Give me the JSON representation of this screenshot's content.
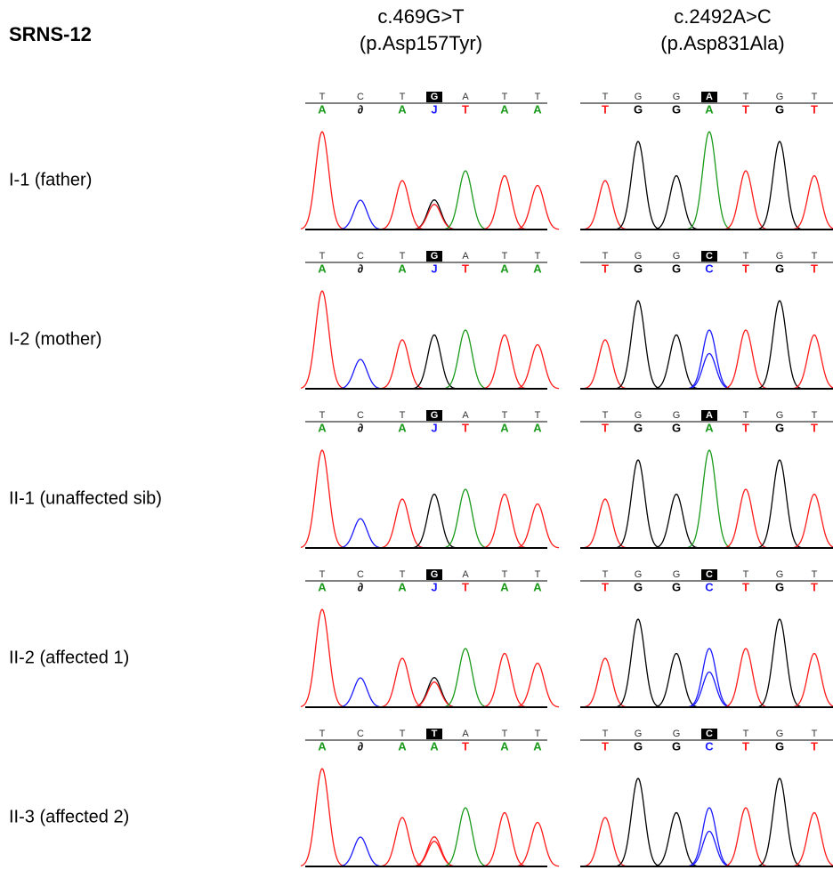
{
  "title": "SRNS-12",
  "highlight": 3,
  "columns": [
    {
      "label": "c.469G>T",
      "sublabel": "(p.Asp157Tyr)"
    },
    {
      "label": "c.2492A>C",
      "sublabel": "(p.Asp831Ala)"
    }
  ],
  "rows": [
    {
      "label": "I-1 (father)",
      "traces": [
        {
          "reference": [
            "T",
            "C",
            "T",
            "G",
            "A",
            "T",
            "T"
          ],
          "calls": [
            "A",
            "∂",
            "A",
            "J",
            "T",
            "A",
            "A"
          ]
        },
        {
          "reference": [
            "T",
            "G",
            "G",
            "A",
            "T",
            "G",
            "T"
          ],
          "calls": [
            "T",
            "G",
            "G",
            "A",
            "T",
            "G",
            "T"
          ]
        }
      ]
    },
    {
      "label": "I-2 (mother)",
      "traces": [
        {
          "reference": [
            "T",
            "C",
            "T",
            "G",
            "A",
            "T",
            "T"
          ],
          "calls": [
            "A",
            "∂",
            "A",
            "J",
            "T",
            "A",
            "A"
          ]
        },
        {
          "reference": [
            "T",
            "G",
            "G",
            "C",
            "T",
            "G",
            "T"
          ],
          "calls": [
            "T",
            "G",
            "G",
            "C",
            "T",
            "G",
            "T"
          ]
        }
      ]
    },
    {
      "label": "II-1 (unaffected sib)",
      "traces": [
        {
          "reference": [
            "T",
            "C",
            "T",
            "G",
            "A",
            "T",
            "T"
          ],
          "calls": [
            "A",
            "∂",
            "A",
            "J",
            "T",
            "A",
            "A"
          ]
        },
        {
          "reference": [
            "T",
            "G",
            "G",
            "A",
            "T",
            "G",
            "T"
          ],
          "calls": [
            "T",
            "G",
            "G",
            "A",
            "T",
            "G",
            "T"
          ]
        }
      ]
    },
    {
      "label": "II-2 (affected 1)",
      "traces": [
        {
          "reference": [
            "T",
            "C",
            "T",
            "G",
            "A",
            "T",
            "T"
          ],
          "calls": [
            "A",
            "∂",
            "A",
            "J",
            "T",
            "A",
            "A"
          ]
        },
        {
          "reference": [
            "T",
            "G",
            "G",
            "C",
            "T",
            "G",
            "T"
          ],
          "calls": [
            "T",
            "G",
            "G",
            "C",
            "T",
            "G",
            "T"
          ]
        }
      ]
    },
    {
      "label": "II-3 (affected 2)",
      "traces": [
        {
          "reference": [
            "T",
            "C",
            "T",
            "T",
            "A",
            "T",
            "T"
          ],
          "calls": [
            "A",
            "∂",
            "A",
            "A",
            "T",
            "A",
            "A"
          ]
        },
        {
          "reference": [
            "T",
            "G",
            "G",
            "C",
            "T",
            "G",
            "T"
          ],
          "calls": [
            "T",
            "G",
            "G",
            "C",
            "T",
            "G",
            "T"
          ]
        }
      ]
    }
  ]
}
